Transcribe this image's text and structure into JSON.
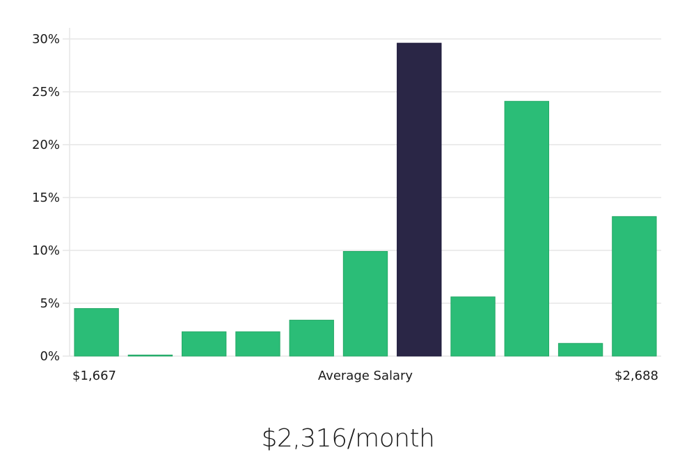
{
  "chart_data": {
    "type": "bar",
    "values": [
      4.5,
      0.1,
      2.3,
      2.3,
      3.4,
      9.9,
      29.6,
      5.6,
      24.1,
      1.2,
      13.2
    ],
    "highlight_index": 6,
    "ylim": [
      0,
      30
    ],
    "y_ticks": [
      "0%",
      "5%",
      "10%",
      "15%",
      "20%",
      "25%",
      "30%"
    ],
    "y_tick_values": [
      0,
      5,
      10,
      15,
      20,
      25,
      30
    ],
    "grid": true,
    "x_min_label": "$1,667",
    "x_mid_label": "Average Salary",
    "x_max_label": "$2,688",
    "colors": {
      "bar": "#2bbd77",
      "highlight": "#2a2646",
      "grid": "#e6e6e6",
      "axis": "#d9d9d9"
    }
  },
  "summary": "$2,316/month"
}
